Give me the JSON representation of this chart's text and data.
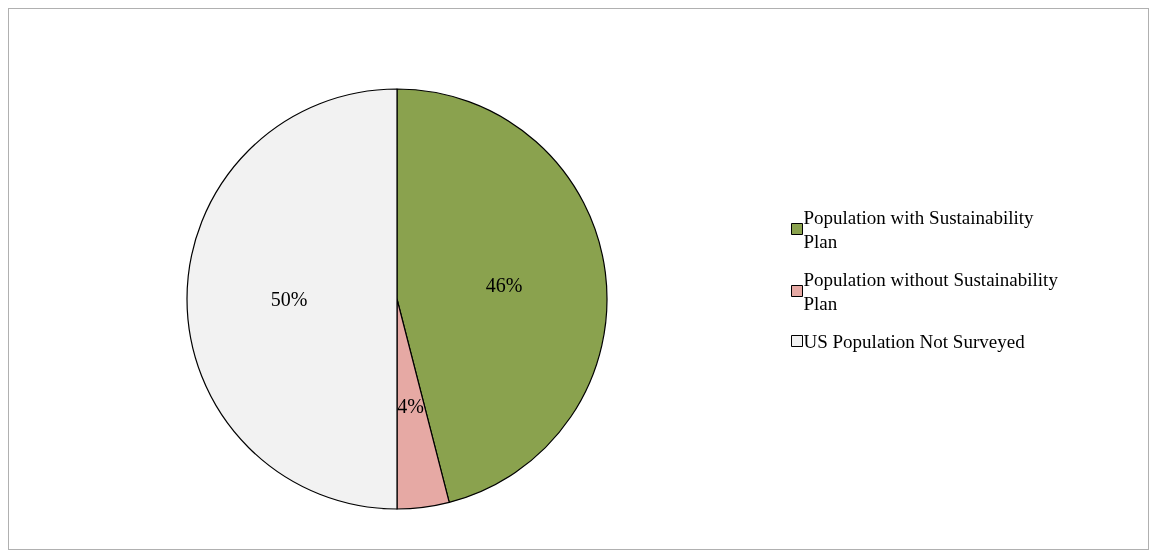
{
  "chart_data": {
    "type": "pie",
    "categories": [
      "Population with Sustainability Plan",
      "Population without Sustainability Plan",
      "US Population Not Surveyed"
    ],
    "values": [
      46,
      4,
      50
    ],
    "colors": [
      "#8aa24e",
      "#e6a9a4",
      "#f2f2f2"
    ],
    "value_labels": [
      "46%",
      "4%",
      "50%"
    ],
    "legend": "right"
  }
}
